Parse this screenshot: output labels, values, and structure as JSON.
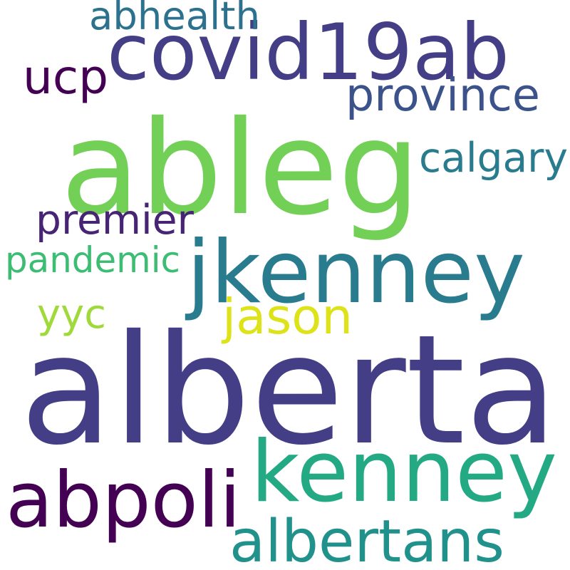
{
  "words": [
    {
      "text": "alberta",
      "color": "#433e85"
    },
    {
      "text": "ableg",
      "color": "#73d056"
    },
    {
      "text": "jkenney",
      "color": "#297b8e"
    },
    {
      "text": "kenney",
      "color": "#23a983"
    },
    {
      "text": "covid19ab",
      "color": "#433e85"
    },
    {
      "text": "abpoli",
      "color": "#440154"
    },
    {
      "text": "albertans",
      "color": "#21918c"
    },
    {
      "text": "province",
      "color": "#3b528b"
    },
    {
      "text": "jason",
      "color": "#dde318"
    },
    {
      "text": "calgary",
      "color": "#287c8e"
    },
    {
      "text": "pandemic",
      "color": "#3dbc74"
    },
    {
      "text": "premier",
      "color": "#482475"
    },
    {
      "text": "abhealth",
      "color": "#2c718e"
    },
    {
      "text": "ucp",
      "color": "#440154"
    },
    {
      "text": "yyc",
      "color": "#9fda3a"
    }
  ]
}
